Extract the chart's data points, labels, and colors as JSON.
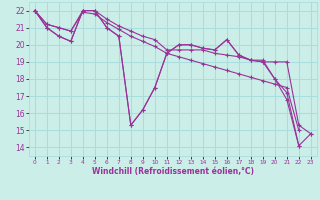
{
  "xlabel": "Windchill (Refroidissement éolien,°C)",
  "background_color": "#cceee8",
  "grid_color": "#aadddd",
  "line_color": "#993399",
  "xlim": [
    -0.5,
    23.5
  ],
  "ylim": [
    13.5,
    22.5
  ],
  "xticks": [
    0,
    1,
    2,
    3,
    4,
    5,
    6,
    7,
    8,
    9,
    10,
    11,
    12,
    13,
    14,
    15,
    16,
    17,
    18,
    19,
    20,
    21,
    22,
    23
  ],
  "yticks": [
    14,
    15,
    16,
    17,
    18,
    19,
    20,
    21,
    22
  ],
  "series": [
    [
      22,
      21.2,
      21.0,
      20.8,
      22.0,
      22.0,
      21.5,
      21.1,
      20.8,
      20.5,
      20.3,
      19.7,
      19.7,
      19.7,
      19.7,
      19.5,
      19.4,
      19.3,
      19.1,
      19.1,
      18.0,
      17.2,
      14.1,
      14.8
    ],
    [
      22,
      21.2,
      21.0,
      20.8,
      21.9,
      21.8,
      21.3,
      20.9,
      20.5,
      20.2,
      19.9,
      19.5,
      19.3,
      19.1,
      18.9,
      18.7,
      18.5,
      18.3,
      18.1,
      17.9,
      17.7,
      17.5,
      15.0,
      null
    ],
    [
      22,
      21.0,
      20.5,
      20.2,
      22.0,
      22.0,
      21.0,
      20.5,
      15.3,
      16.2,
      17.5,
      19.5,
      20.0,
      20.0,
      19.8,
      19.7,
      20.3,
      19.4,
      19.1,
      19.0,
      18.0,
      16.8,
      14.1,
      null
    ],
    [
      22,
      21.0,
      20.5,
      20.2,
      22.0,
      22.0,
      21.0,
      20.5,
      15.3,
      16.2,
      17.5,
      19.5,
      20.0,
      20.0,
      19.8,
      19.7,
      20.3,
      19.4,
      19.1,
      19.0,
      19.0,
      19.0,
      15.3,
      14.8
    ]
  ]
}
